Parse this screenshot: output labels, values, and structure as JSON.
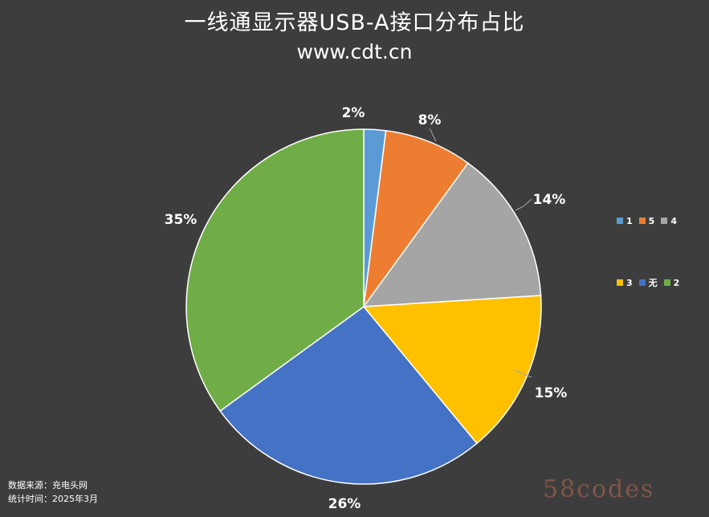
{
  "chart_data": {
    "type": "pie",
    "title": "一线通显示器USB-A接口分布占比",
    "subtitle": "www.cdt.cn",
    "categories": [
      "1",
      "5",
      "4",
      "3",
      "无",
      "2"
    ],
    "values": [
      2,
      8,
      14,
      15,
      26,
      35
    ],
    "data_labels": [
      "2%",
      "8%",
      "14%",
      "15%",
      "26%",
      "35%"
    ],
    "colors": [
      "#5b9bd5",
      "#ed7d31",
      "#a5a5a5",
      "#ffc000",
      "#4472c4",
      "#70ad47"
    ],
    "legend": {
      "position": "right",
      "rows": [
        [
          "1",
          "5",
          "4"
        ],
        [
          "3",
          "无",
          "2"
        ]
      ]
    }
  },
  "footer": {
    "source": "数据来源：充电头网",
    "period": "统计时间：2025年3月"
  },
  "watermark": "58codes"
}
